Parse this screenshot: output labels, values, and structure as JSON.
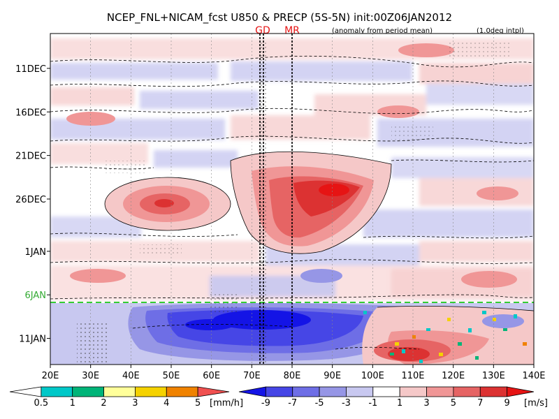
{
  "chart_data": {
    "type": "heatmap",
    "title": "NCEP_FNL+NICAM_fcst U850 & PRECP (5S-5N) init:00Z06JAN2012",
    "subtitle_left": "(anomaly from period mean)",
    "subtitle_right": "(1.0deg intpl)",
    "xlim": [
      20,
      140
    ],
    "x_ticks": [
      20,
      30,
      40,
      50,
      60,
      70,
      80,
      90,
      100,
      110,
      120,
      130,
      140
    ],
    "x_tick_labels": [
      "20E",
      "30E",
      "40E",
      "50E",
      "60E",
      "70E",
      "80E",
      "90E",
      "100E",
      "110E",
      "120E",
      "130E",
      "140E"
    ],
    "y_range_days": [
      "7DEC",
      "14JAN"
    ],
    "y_tick_labels": [
      "11DEC",
      "16DEC",
      "21DEC",
      "26DEC",
      "1JAN",
      "6JAN",
      "11JAN"
    ],
    "forecast_init": "6JAN",
    "markers": [
      {
        "label": "GD",
        "lon": 72.5
      },
      {
        "label": "MR",
        "lon": 80
      }
    ],
    "features": [
      {
        "name": "westerly-anomaly-50E",
        "lon": 50,
        "date": "25DEC",
        "u_ms": 7
      },
      {
        "name": "westerly-anomaly-90E",
        "lon": 89,
        "date": "24DEC",
        "u_ms": 9
      },
      {
        "name": "easterly-anomaly-forecast",
        "lon": 65,
        "date": "8JAN",
        "u_ms": -9
      },
      {
        "name": "westerly-anomaly-forecast-110E",
        "lon": 110,
        "date": "12JAN",
        "u_ms": 9
      }
    ],
    "legend_precip": {
      "ticks": [
        "0.5",
        "1",
        "2",
        "3",
        "4",
        "5"
      ],
      "unit": "[mm/h]",
      "colors": [
        "#ffffff",
        "#00c8c8",
        "#00b478",
        "#ffff9a",
        "#f5d200",
        "#f08200",
        "#f05050"
      ]
    },
    "legend_wind": {
      "ticks": [
        "-9",
        "-7",
        "-5",
        "-3",
        "-1",
        "1",
        "3",
        "5",
        "7",
        "9"
      ],
      "unit": "[m/s]",
      "colors": [
        "#1414e6",
        "#4646e6",
        "#6e6ee6",
        "#9696e6",
        "#c8c8f0",
        "#ffffff",
        "#f5c8c8",
        "#f09696",
        "#e66464",
        "#dc3232",
        "#e61414"
      ]
    }
  }
}
